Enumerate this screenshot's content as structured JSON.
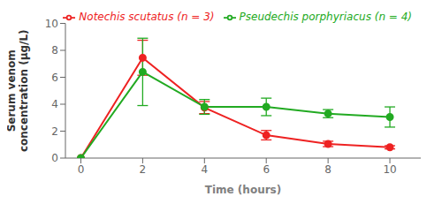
{
  "chart_data": {
    "type": "line",
    "x": [
      0,
      2,
      4,
      6,
      8,
      10
    ],
    "series": [
      {
        "name": "Notechis scutatus  (n = 3)",
        "color": "#EE2222",
        "marker": "circle",
        "values": [
          0.0,
          7.45,
          3.75,
          1.7,
          1.05,
          0.8
        ],
        "errors": [
          0.0,
          1.3,
          0.45,
          0.35,
          0.2,
          0.12
        ]
      },
      {
        "name": "Pseudechis porphyriacus (n = 4)",
        "color": "#22AA22",
        "marker": "circle",
        "values": [
          0.0,
          6.4,
          3.8,
          3.8,
          3.3,
          3.05
        ],
        "errors": [
          0.0,
          2.5,
          0.55,
          0.65,
          0.3,
          0.75
        ]
      }
    ],
    "xlabel": "Time (hours)",
    "ylabel": "Serum venom\nconcentration (µg/L)",
    "xlim": [
      -0.5,
      11.0
    ],
    "ylim": [
      0,
      10
    ],
    "xticks": [
      0,
      2,
      4,
      6,
      8,
      10
    ],
    "yticks": [
      0,
      2,
      4,
      6,
      8,
      10
    ],
    "legend": "upper right",
    "grid": false
  }
}
